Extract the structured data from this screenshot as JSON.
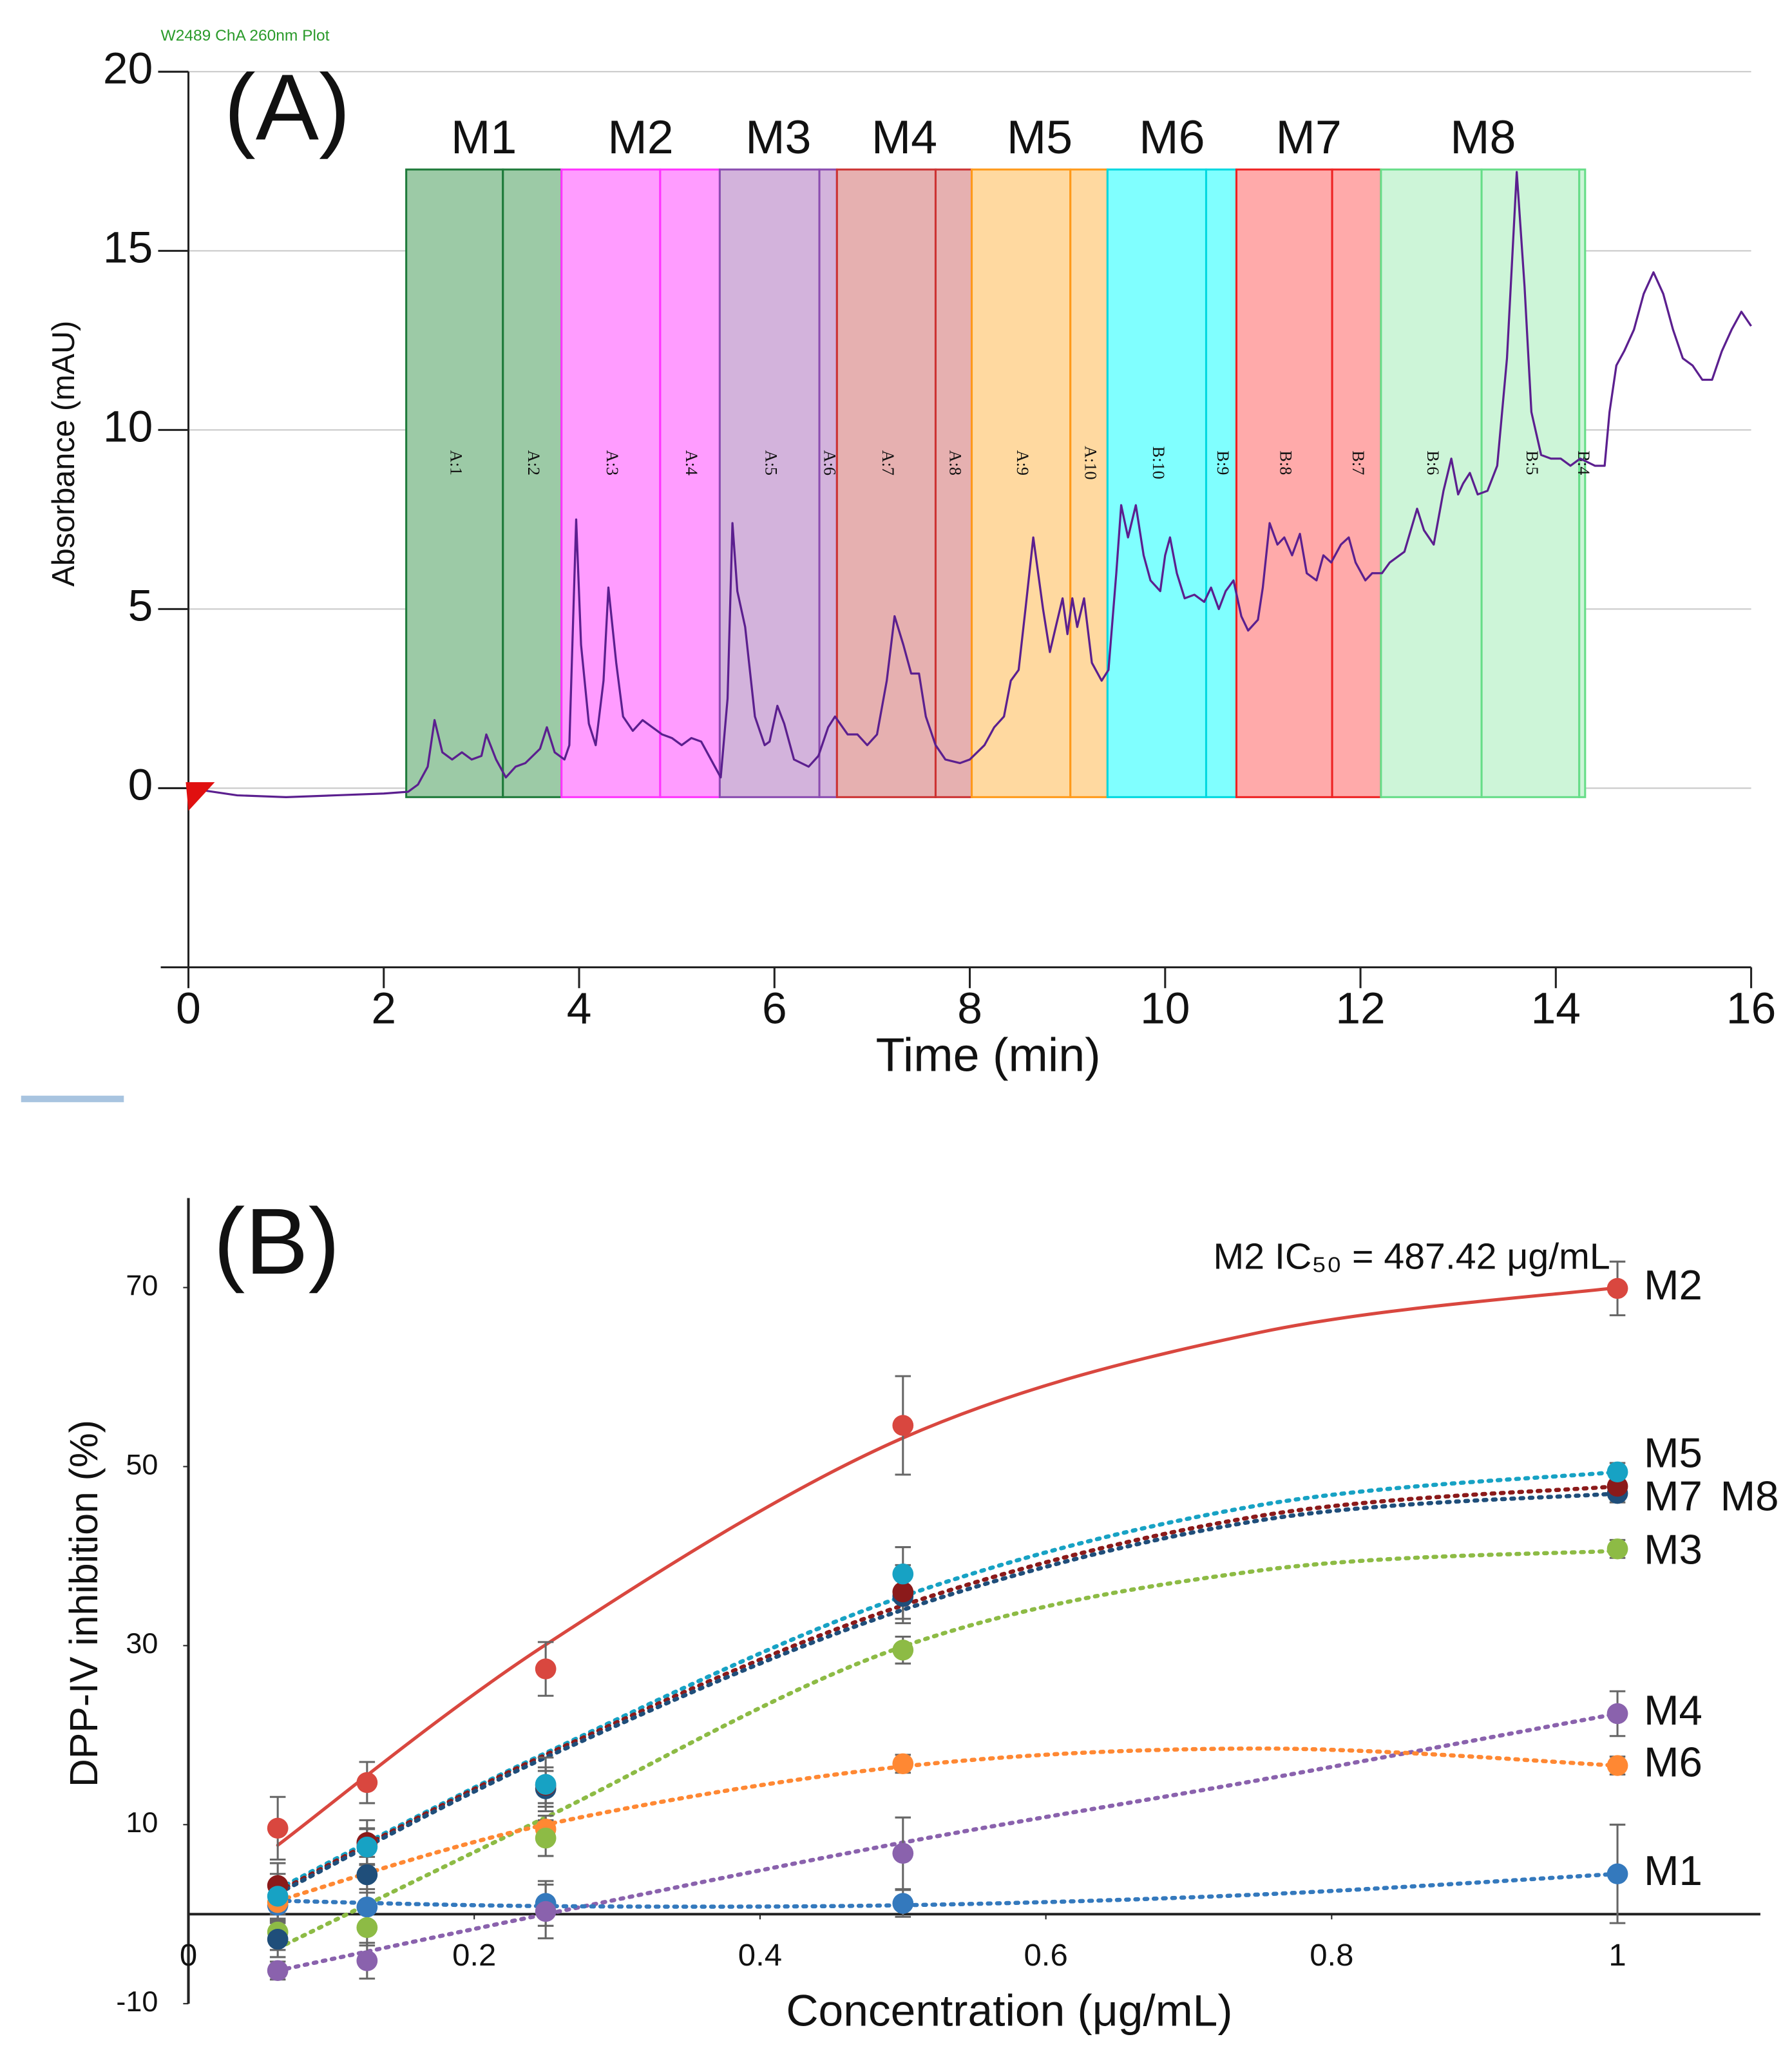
{
  "chart_data": [
    {
      "type": "line",
      "title": "W2489 ChA 260nm Plot",
      "panel": "(A)",
      "xlabel": "Time (min)",
      "ylabel": "Absorbance (mAU)",
      "xlim": [
        0,
        16
      ],
      "ylim": [
        -5,
        20
      ],
      "xticks": [
        0,
        2,
        4,
        6,
        8,
        10,
        12,
        14,
        16
      ],
      "yticks": [
        0,
        5,
        10,
        15,
        20
      ],
      "grid": true,
      "color": "#5b1f8f",
      "x": [
        0,
        0.5,
        1,
        1.5,
        2,
        2.25,
        2.35,
        2.45,
        2.52,
        2.6,
        2.7,
        2.8,
        2.9,
        3,
        3.05,
        3.15,
        3.25,
        3.35,
        3.45,
        3.6,
        3.67,
        3.75,
        3.85,
        3.9,
        3.97,
        4.02,
        4.1,
        4.17,
        4.25,
        4.3,
        4.38,
        4.45,
        4.55,
        4.65,
        4.75,
        4.85,
        4.95,
        5.05,
        5.15,
        5.25,
        5.35,
        5.45,
        5.52,
        5.57,
        5.62,
        5.7,
        5.8,
        5.9,
        5.95,
        6.03,
        6.1,
        6.2,
        6.35,
        6.45,
        6.55,
        6.62,
        6.75,
        6.85,
        6.95,
        7.05,
        7.15,
        7.23,
        7.32,
        7.4,
        7.48,
        7.55,
        7.65,
        7.75,
        7.9,
        8,
        8.15,
        8.25,
        8.35,
        8.42,
        8.5,
        8.57,
        8.65,
        8.75,
        8.82,
        8.88,
        8.95,
        9,
        9.05,
        9.1,
        9.17,
        9.25,
        9.35,
        9.42,
        9.5,
        9.55,
        9.62,
        9.7,
        9.78,
        9.85,
        9.95,
        10,
        10.05,
        10.12,
        10.2,
        10.3,
        10.4,
        10.47,
        10.55,
        10.62,
        10.7,
        10.78,
        10.85,
        10.95,
        11,
        11.07,
        11.15,
        11.22,
        11.3,
        11.38,
        11.45,
        11.55,
        11.62,
        11.7,
        11.8,
        11.88,
        11.95,
        12.05,
        12.12,
        12.22,
        12.3,
        12.45,
        12.58,
        12.65,
        12.75,
        12.85,
        12.93,
        13,
        13.05,
        13.12,
        13.2,
        13.3,
        13.4,
        13.5,
        13.6,
        13.68,
        13.75,
        13.85,
        13.95,
        14.05,
        14.15,
        14.25,
        14.4,
        14.5,
        14.55,
        14.62,
        14.7,
        14.8,
        14.9,
        15,
        15.1,
        15.2,
        15.3,
        15.4,
        15.5,
        15.6,
        15.7,
        15.8,
        15.9,
        16
      ],
      "values": [
        0,
        -0.2,
        -0.25,
        -0.2,
        -0.15,
        -0.1,
        0.1,
        0.6,
        1.9,
        1.0,
        0.8,
        1.0,
        0.8,
        0.9,
        1.5,
        0.8,
        0.3,
        0.6,
        0.7,
        1.1,
        1.7,
        1.0,
        0.8,
        1.2,
        7.5,
        4.0,
        1.8,
        1.2,
        3.0,
        5.6,
        3.5,
        2.0,
        1.6,
        1.9,
        1.7,
        1.5,
        1.4,
        1.2,
        1.4,
        1.3,
        0.8,
        0.3,
        2.5,
        7.4,
        5.5,
        4.5,
        2.0,
        1.2,
        1.3,
        2.3,
        1.8,
        0.8,
        0.6,
        0.9,
        1.7,
        2.0,
        1.5,
        1.5,
        1.2,
        1.5,
        3.0,
        4.8,
        4.0,
        3.2,
        3.2,
        2.0,
        1.2,
        0.8,
        0.7,
        0.8,
        1.2,
        1.7,
        2.0,
        3.0,
        3.3,
        5.0,
        7.0,
        5.0,
        3.8,
        4.5,
        5.3,
        4.3,
        5.3,
        4.5,
        5.3,
        3.5,
        3.0,
        3.3,
        6.0,
        7.9,
        7.0,
        7.9,
        6.5,
        5.8,
        5.5,
        6.5,
        7.0,
        6.0,
        5.3,
        5.4,
        5.2,
        5.6,
        5.0,
        5.5,
        5.8,
        4.8,
        4.4,
        4.7,
        5.6,
        7.4,
        6.8,
        7.0,
        6.5,
        7.1,
        6.0,
        5.8,
        6.5,
        6.3,
        6.8,
        7.0,
        6.3,
        5.8,
        6.0,
        6.0,
        6.3,
        6.6,
        7.8,
        7.2,
        6.8,
        8.3,
        9.2,
        8.2,
        8.5,
        8.8,
        8.2,
        8.3,
        9.0,
        12.0,
        17.2,
        14.0,
        10.5,
        9.3,
        9.2,
        9.2,
        9.0,
        9.2,
        9.0,
        9.0,
        10.5,
        11.8,
        12.2,
        12.8,
        13.8,
        14.4,
        13.8,
        12.8,
        12.0,
        11.8,
        11.4,
        11.4,
        12.2,
        12.8,
        13.3,
        12.9
      ],
      "fraction_span": [
        -0.25,
        17.27
      ],
      "fractions": [
        {
          "name": "M1",
          "color": "#9ccaa6",
          "edge_color": "#1e7a3a",
          "bounds": [
            2.23,
            3.22,
            3.82
          ],
          "sublabels": [
            "A:1",
            "A:2"
          ]
        },
        {
          "name": "M2",
          "color": "#ff9cff",
          "edge_color": "#ff33ff",
          "bounds": [
            3.82,
            4.83,
            5.44
          ],
          "sublabels": [
            "A:3",
            "A:4"
          ]
        },
        {
          "name": "M3",
          "color": "#d3b3dc",
          "edge_color": "#8a4cb0",
          "bounds": [
            5.44,
            6.46,
            6.64
          ],
          "sublabels": [
            "A:5",
            "A:6"
          ]
        },
        {
          "name": "M4",
          "color": "#e6b0b0",
          "edge_color": "#cc3333",
          "bounds": [
            6.64,
            7.65,
            8.02
          ],
          "sublabels": [
            "A:7",
            "A:8"
          ]
        },
        {
          "name": "M5",
          "color": "#ffd9a0",
          "edge_color": "#ff9a1a",
          "bounds": [
            8.02,
            9.03,
            9.41
          ],
          "sublabels": [
            "A:9",
            "A:10"
          ]
        },
        {
          "name": "M6",
          "color": "#80ffff",
          "edge_color": "#00d8e0",
          "bounds": [
            9.41,
            10.42,
            10.73
          ],
          "sublabels": [
            "B:10",
            "B:9"
          ]
        },
        {
          "name": "M7",
          "color": "#ffaaaa",
          "edge_color": "#ee2222",
          "bounds": [
            10.73,
            11.71,
            12.21
          ],
          "sublabels": [
            "B:8",
            "B:7"
          ]
        },
        {
          "name": "M8",
          "color": "#cdf5d8",
          "edge_color": "#66dd88",
          "bounds": [
            12.21,
            13.24,
            14.24,
            14.3
          ],
          "sublabels": [
            "B:6",
            "B:5",
            "B:4"
          ]
        }
      ]
    },
    {
      "type": "scatter",
      "panel": "(B)",
      "annotation": "M2 IC₅₀ = 487.42 μg/mL",
      "xlabel": "Concentration (μg/mL)",
      "ylabel": "DPP-IV inhibition (%)",
      "xlim": [
        0,
        1.1
      ],
      "ylim": [
        -10,
        80
      ],
      "xticks": [
        0,
        0.2,
        0.4,
        0.6,
        0.8,
        1
      ],
      "yticks": [
        -10,
        10,
        30,
        50,
        70
      ],
      "x": [
        0.0625,
        0.125,
        0.25,
        0.5,
        1
      ],
      "fit_x": [
        0.0625,
        0.25,
        0.5,
        0.75,
        1
      ],
      "series": [
        {
          "name": "M2",
          "color": "#d9473f",
          "style": "solid",
          "values": [
            9.6,
            14.7,
            27.4,
            54.6,
            69.9
          ],
          "errors": [
            3.5,
            2.3,
            3,
            5.5,
            3
          ],
          "fit": [
            7.7,
            30.1,
            53.2,
            65,
            70
          ]
        },
        {
          "name": "M5",
          "color": "#17a2c4",
          "style": "dotted",
          "values": [
            2,
            7.5,
            14.5,
            38,
            49.4
          ],
          "errors": [
            2.5,
            2,
            3,
            3,
            1
          ],
          "fit": [
            2.8,
            18,
            35.5,
            45.7,
            49.4
          ]
        },
        {
          "name": "M7",
          "color": "#8b1a1a",
          "style": "dotted",
          "values": [
            3.2,
            8,
            14.4,
            36,
            47.8
          ],
          "errors": [
            2.5,
            2.5,
            2,
            3,
            1
          ],
          "fit": [
            2.5,
            17.8,
            34.5,
            44.5,
            47.8
          ]
        },
        {
          "name": "M8",
          "color": "#1f4e7a",
          "style": "dotted",
          "values": [
            -2.8,
            4.4,
            14,
            35.5,
            47
          ],
          "errors": [
            2,
            2,
            2,
            3,
            1
          ],
          "fit": [
            2.3,
            17.5,
            34,
            44,
            47
          ]
        },
        {
          "name": "M3",
          "color": "#8dbb45",
          "style": "dotted",
          "values": [
            -2,
            -1.5,
            8.5,
            29.5,
            40.8
          ],
          "errors": [
            2,
            2,
            2,
            1.5,
            1
          ],
          "fit": [
            -3.8,
            10.8,
            29.9,
            38.4,
            40.6
          ]
        },
        {
          "name": "M4",
          "color": "#8a62ad",
          "style": "dotted",
          "values": [
            -6.3,
            -5.2,
            0.3,
            6.8,
            22.4
          ],
          "errors": [
            1,
            2,
            3,
            4,
            2.5
          ],
          "fit": [
            -6.3,
            0,
            8,
            15,
            22.4
          ]
        },
        {
          "name": "M6",
          "color": "#ff8833",
          "style": "dotted",
          "values": [
            1.3,
            7.6,
            9.5,
            16.8,
            16.6
          ],
          "errors": [
            2,
            2,
            1.5,
            1,
            1
          ],
          "fit": [
            1.5,
            10,
            16.5,
            18.5,
            16.6
          ]
        },
        {
          "name": "M1",
          "color": "#3479bd",
          "style": "dotted",
          "values": [
            1,
            0.8,
            1.2,
            1.2,
            4.5
          ],
          "errors": [
            2,
            2,
            2.5,
            1.5,
            5.5
          ],
          "fit": [
            1.5,
            0.9,
            1,
            2.2,
            4.5
          ]
        }
      ]
    }
  ]
}
